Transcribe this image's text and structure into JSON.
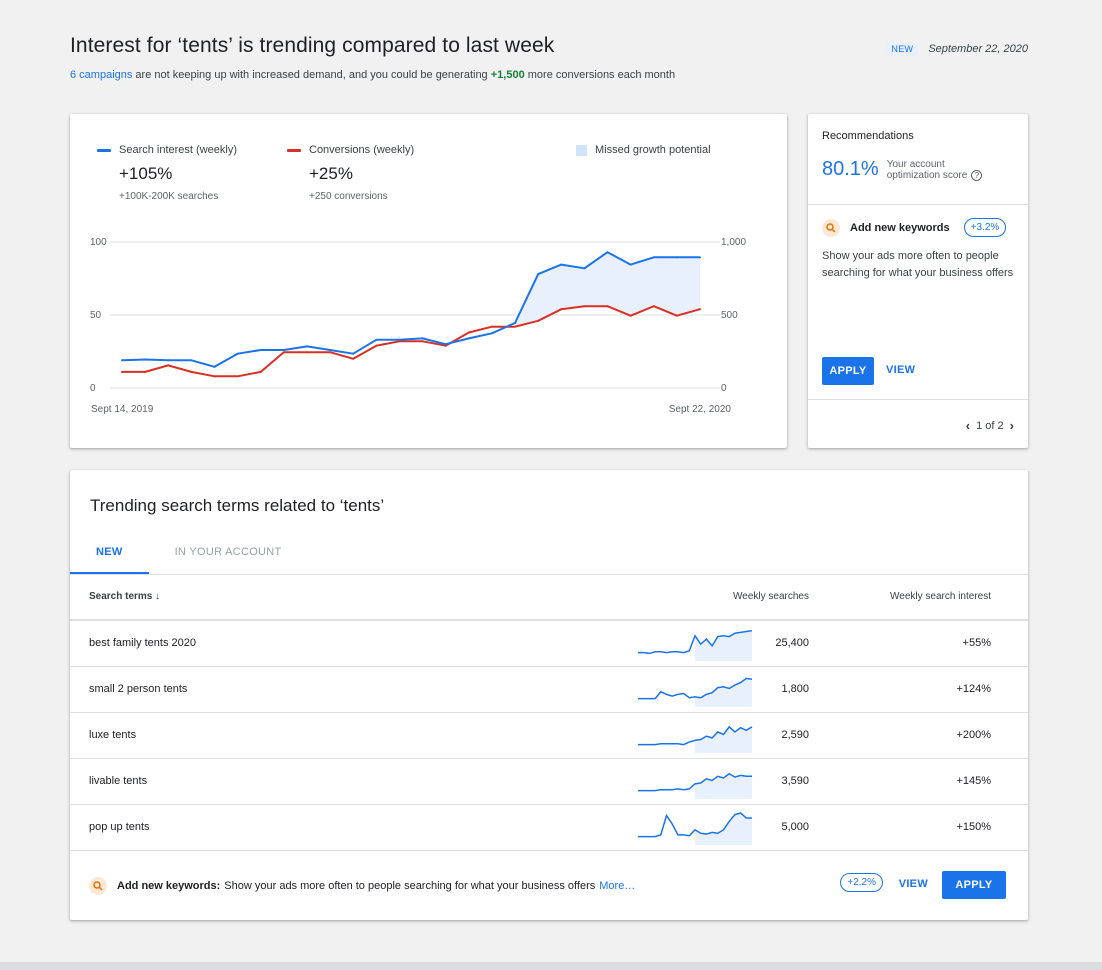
{
  "header": {
    "title": "Interest for ‘tents’ is trending compared to last week",
    "sub_link": "6 campaigns",
    "sub_text_1": " are not keeping up with increased demand, and you could be generating ",
    "sub_highlight": "+1,500",
    "sub_text_2": " more conversions each month",
    "badge": "NEW",
    "date": "September 22, 2020"
  },
  "chart": {
    "legend": [
      {
        "label": "Search interest (weekly)",
        "value": "+105%",
        "sub": "+100K-200K searches",
        "color": "#1a73e8"
      },
      {
        "label": "Conversions (weekly)",
        "value": "+25%",
        "sub": "+250 conversions",
        "color": "#d93025"
      }
    ],
    "area_label": "Missed growth potential",
    "area_color": "#e8f0fe",
    "x_start_label": "Sept 14, 2019",
    "x_end_label": "Sept 22, 2020"
  },
  "chart_data": {
    "type": "line",
    "x_start": "Sept 14, 2019",
    "x_end": "Sept 22, 2020",
    "y_left_ticks": [
      "100",
      "50",
      "0"
    ],
    "y_right_ticks": [
      "1,000",
      "500",
      "0"
    ],
    "ylim_left": [
      0,
      100
    ],
    "ylim_right": [
      0,
      1000
    ],
    "series": [
      {
        "name": "Search interest (weekly)",
        "axis": "left",
        "values": [
          19,
          19.5,
          19,
          19,
          14.5,
          23.5,
          26,
          26,
          28.5,
          26,
          23.5,
          33,
          33,
          34,
          30,
          34,
          37.5,
          44.5,
          78,
          84.5,
          82,
          93,
          84.5,
          89.5,
          89.5,
          89.5
        ]
      },
      {
        "name": "Conversions (weekly)",
        "axis": "right",
        "values": [
          110,
          110,
          155,
          110,
          80,
          80,
          110,
          245,
          245,
          245,
          200,
          290,
          320,
          320,
          290,
          380,
          420,
          420,
          460,
          540,
          560,
          560,
          495,
          560,
          495,
          540
        ]
      }
    ]
  },
  "recommendations": {
    "title": "Recommendations",
    "score": "80.1%",
    "score_text_1": "Your account",
    "score_text_2": "optimization score",
    "keyword_title": "Add new keywords",
    "keyword_uplift": "+3.2%",
    "description": "Show your ads more often to people searching for what your business offers",
    "apply_label": "APPLY",
    "view_label": "VIEW",
    "pager": "1 of 2"
  },
  "trending": {
    "title": "Trending search terms related to ‘tents’",
    "tabs": [
      "NEW",
      "IN YOUR ACCOUNT"
    ],
    "columns": [
      "Search terms",
      "Weekly searches",
      "Weekly search interest"
    ],
    "rows": [
      {
        "term": "best family tents 2020",
        "searches": "25,400",
        "interest": "+55%",
        "trend": [
          10,
          10,
          9,
          11,
          11,
          10,
          11,
          11,
          10,
          12,
          30,
          20,
          26,
          18,
          29,
          30,
          29,
          33,
          34,
          35,
          36
        ]
      },
      {
        "term": "small 2 person tents",
        "searches": "1,800",
        "interest": "+124%",
        "trend": [
          10,
          10,
          10,
          10,
          18,
          15,
          13,
          15,
          16,
          11,
          12,
          11,
          15,
          17,
          23,
          24,
          22,
          26,
          29,
          34,
          33
        ]
      },
      {
        "term": "luxe tents",
        "searches": "2,590",
        "interest": "+200%",
        "trend": [
          10,
          10,
          10,
          10,
          11,
          11,
          11,
          11,
          10,
          13,
          15,
          16,
          20,
          18,
          25,
          22,
          31,
          25,
          30,
          27,
          31
        ]
      },
      {
        "term": "livable tents",
        "searches": "3,590",
        "interest": "+145%",
        "trend": [
          10,
          10,
          10,
          10,
          11,
          11,
          11,
          12,
          11,
          12,
          18,
          19,
          24,
          22,
          27,
          25,
          30,
          26,
          28,
          27,
          27
        ]
      },
      {
        "term": "pop up tents",
        "searches": "5,000",
        "interest": "+150%",
        "trend": [
          10,
          10,
          10,
          10,
          12,
          35,
          25,
          12,
          12,
          11,
          18,
          14,
          13,
          15,
          14,
          18,
          28,
          36,
          38,
          32,
          32
        ]
      }
    ],
    "footer": {
      "title": "Add new keywords:",
      "text": "Show your ads more often to people searching for what your business offers",
      "more": "More…",
      "uplift": "+2.2%",
      "view_label": "VIEW",
      "apply_label": "APPLY"
    }
  }
}
